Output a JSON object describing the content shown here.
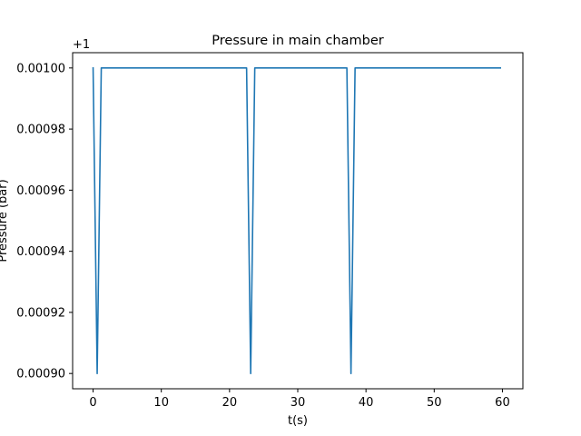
{
  "chart_data": {
    "type": "line",
    "title": "Pressure in main chamber",
    "xlabel": "t(s)",
    "ylabel": "Pressure (bar)",
    "y_offset_label": "+1",
    "y_offset": 1,
    "xlim": [
      -3,
      63
    ],
    "ylim": [
      0.000895,
      0.001005
    ],
    "xticks": [
      0,
      10,
      20,
      30,
      40,
      50,
      60
    ],
    "xtick_labels": [
      "0",
      "10",
      "20",
      "30",
      "40",
      "50",
      "60"
    ],
    "yticks": [
      0.0009,
      0.00092,
      0.00094,
      0.00096,
      0.00098,
      0.001
    ],
    "ytick_labels": [
      "0.00090",
      "0.00092",
      "0.00094",
      "0.00096",
      "0.00098",
      "0.00100"
    ],
    "grid": false,
    "series": [
      {
        "color": "#1f77b4",
        "x": [
          0,
          0.6,
          1.2,
          22.5,
          23.1,
          23.7,
          37.2,
          37.8,
          38.4,
          59.7
        ],
        "y": [
          0.001,
          0.0009,
          0.001,
          0.001,
          0.0009,
          0.001,
          0.001,
          0.0009,
          0.001,
          0.001
        ]
      }
    ]
  }
}
